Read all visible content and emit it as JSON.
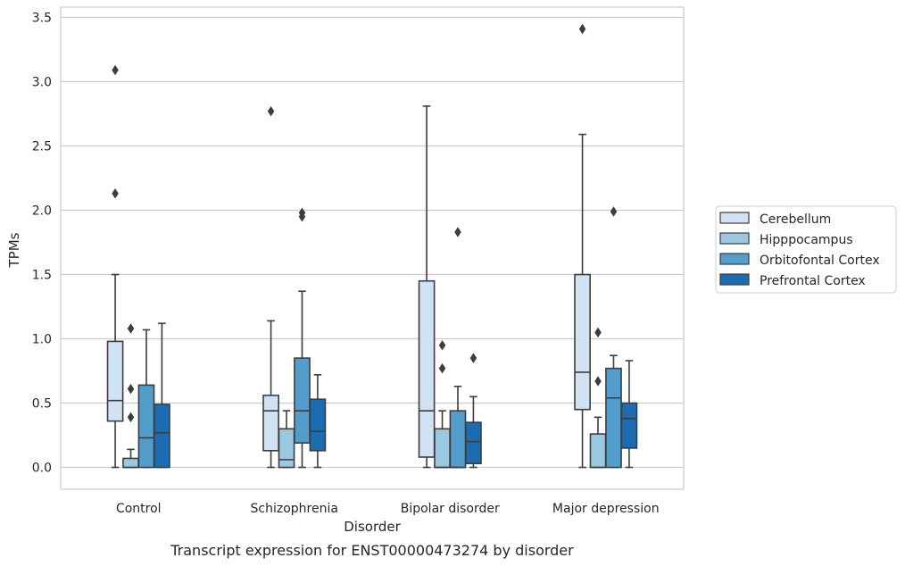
{
  "chart_data": {
    "type": "box",
    "xlabel": "Disorder",
    "ylabel": "TPMs",
    "caption": "Transcript expression for ENST00000473274 by disorder",
    "categories": [
      "Control",
      "Schizophrenia",
      "Bipolar disorder",
      "Major depression"
    ],
    "ylim": [
      -0.17,
      3.58
    ],
    "yticks": [
      0.0,
      0.5,
      1.0,
      1.5,
      2.0,
      2.5,
      3.0,
      3.5
    ],
    "ytick_labels": [
      "0.0",
      "0.5",
      "1.0",
      "1.5",
      "2.0",
      "2.5",
      "3.0",
      "3.5"
    ],
    "grid": true,
    "legend_placement": "right",
    "series": [
      {
        "name": "Cerebellum",
        "color": "#d1e2f2",
        "boxes": [
          {
            "whisker_low": 0.0,
            "q1": 0.36,
            "median": 0.52,
            "q3": 0.98,
            "whisker_high": 1.5,
            "outliers": [
              2.13,
              3.09
            ]
          },
          {
            "whisker_low": 0.0,
            "q1": 0.13,
            "median": 0.44,
            "q3": 0.56,
            "whisker_high": 1.14,
            "outliers": [
              2.77
            ]
          },
          {
            "whisker_low": 0.0,
            "q1": 0.08,
            "median": 0.44,
            "q3": 1.45,
            "whisker_high": 2.81,
            "outliers": []
          },
          {
            "whisker_low": 0.0,
            "q1": 0.45,
            "median": 0.74,
            "q3": 1.5,
            "whisker_high": 2.59,
            "outliers": [
              3.41
            ]
          }
        ]
      },
      {
        "name": "Hipppocampus",
        "color": "#9ac8e0",
        "boxes": [
          {
            "whisker_low": 0.0,
            "q1": 0.0,
            "median": 0.0,
            "q3": 0.07,
            "whisker_high": 0.14,
            "outliers": [
              0.39,
              0.61,
              1.08
            ]
          },
          {
            "whisker_low": 0.0,
            "q1": 0.0,
            "median": 0.06,
            "q3": 0.3,
            "whisker_high": 0.44,
            "outliers": []
          },
          {
            "whisker_low": 0.0,
            "q1": 0.0,
            "median": 0.0,
            "q3": 0.3,
            "whisker_high": 0.44,
            "outliers": [
              0.77,
              0.95
            ]
          },
          {
            "whisker_low": 0.0,
            "q1": 0.0,
            "median": 0.0,
            "q3": 0.26,
            "whisker_high": 0.39,
            "outliers": [
              0.67,
              1.05
            ]
          }
        ]
      },
      {
        "name": "Orbitofontal Cortex",
        "color": "#529dcc",
        "boxes": [
          {
            "whisker_low": 0.0,
            "q1": 0.0,
            "median": 0.23,
            "q3": 0.64,
            "whisker_high": 1.07,
            "outliers": []
          },
          {
            "whisker_low": 0.0,
            "q1": 0.19,
            "median": 0.44,
            "q3": 0.85,
            "whisker_high": 1.37,
            "outliers": [
              1.95,
              1.98
            ]
          },
          {
            "whisker_low": 0.0,
            "q1": 0.0,
            "median": 0.0,
            "q3": 0.44,
            "whisker_high": 0.63,
            "outliers": [
              1.83
            ]
          },
          {
            "whisker_low": 0.0,
            "q1": 0.0,
            "median": 0.54,
            "q3": 0.77,
            "whisker_high": 0.87,
            "outliers": [
              1.99
            ]
          }
        ]
      },
      {
        "name": "Prefrontal Cortex",
        "color": "#1c6cb1",
        "boxes": [
          {
            "whisker_low": 0.0,
            "q1": 0.0,
            "median": 0.27,
            "q3": 0.49,
            "whisker_high": 1.12,
            "outliers": []
          },
          {
            "whisker_low": 0.0,
            "q1": 0.13,
            "median": 0.28,
            "q3": 0.53,
            "whisker_high": 0.72,
            "outliers": []
          },
          {
            "whisker_low": 0.0,
            "q1": 0.03,
            "median": 0.2,
            "q3": 0.35,
            "whisker_high": 0.55,
            "outliers": [
              0.85
            ]
          },
          {
            "whisker_low": 0.0,
            "q1": 0.15,
            "median": 0.38,
            "q3": 0.5,
            "whisker_high": 0.83,
            "outliers": []
          }
        ]
      }
    ]
  }
}
